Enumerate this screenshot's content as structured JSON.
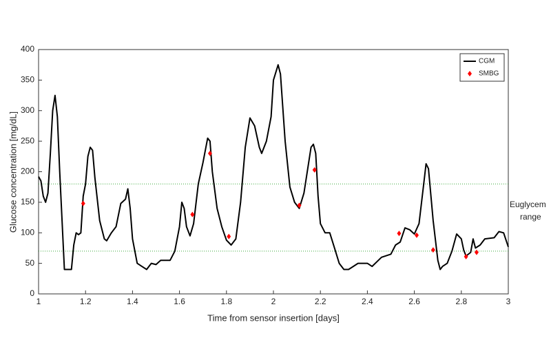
{
  "chart_data": {
    "type": "line",
    "xlabel": "Time from sensor insertion [days]",
    "ylabel": "Glucose concentration [mg/dL]",
    "xlim": [
      1,
      3
    ],
    "xticks": [
      1,
      1.2,
      1.4,
      1.6,
      1.8,
      2,
      2.2,
      2.4,
      2.6,
      2.8,
      3
    ],
    "ylim": [
      0,
      400
    ],
    "yticks": [
      0,
      50,
      100,
      150,
      200,
      250,
      300,
      350,
      400
    ],
    "grid": false,
    "legend": "upper right",
    "hlines": [
      70,
      180
    ],
    "hline_color": "#3aa83a",
    "annotation": [
      "Euglycem",
      "range"
    ],
    "series": [
      {
        "name": "CGM",
        "color": "#000000",
        "style": "line",
        "x": [
          1.0,
          1.01,
          1.02,
          1.03,
          1.04,
          1.05,
          1.06,
          1.07,
          1.08,
          1.09,
          1.1,
          1.11,
          1.12,
          1.14,
          1.15,
          1.16,
          1.17,
          1.18,
          1.19,
          1.2,
          1.21,
          1.22,
          1.23,
          1.24,
          1.26,
          1.28,
          1.29,
          1.31,
          1.33,
          1.35,
          1.37,
          1.38,
          1.39,
          1.4,
          1.42,
          1.44,
          1.46,
          1.48,
          1.5,
          1.52,
          1.56,
          1.58,
          1.6,
          1.61,
          1.62,
          1.63,
          1.645,
          1.66,
          1.68,
          1.7,
          1.72,
          1.73,
          1.74,
          1.76,
          1.78,
          1.8,
          1.82,
          1.84,
          1.86,
          1.88,
          1.9,
          1.92,
          1.94,
          1.95,
          1.97,
          1.99,
          2.0,
          2.02,
          2.03,
          2.05,
          2.07,
          2.09,
          2.11,
          2.13,
          2.16,
          2.17,
          2.18,
          2.19,
          2.2,
          2.22,
          2.24,
          2.26,
          2.28,
          2.3,
          2.32,
          2.34,
          2.36,
          2.4,
          2.42,
          2.46,
          2.5,
          2.52,
          2.54,
          2.56,
          2.58,
          2.6,
          2.62,
          2.64,
          2.65,
          2.66,
          2.68,
          2.7,
          2.71,
          2.72,
          2.74,
          2.76,
          2.78,
          2.8,
          2.81,
          2.82,
          2.84,
          2.85,
          2.86,
          2.88,
          2.9,
          2.94,
          2.96,
          2.98,
          3.0
        ],
        "values": [
          192,
          185,
          160,
          150,
          165,
          230,
          300,
          325,
          290,
          200,
          120,
          40,
          40,
          40,
          80,
          100,
          97,
          100,
          160,
          180,
          225,
          240,
          235,
          190,
          120,
          90,
          87,
          100,
          110,
          148,
          155,
          172,
          140,
          90,
          50,
          45,
          40,
          50,
          48,
          55,
          55,
          70,
          110,
          150,
          140,
          110,
          95,
          115,
          180,
          215,
          255,
          250,
          200,
          140,
          110,
          88,
          80,
          90,
          150,
          240,
          288,
          275,
          240,
          230,
          250,
          290,
          350,
          375,
          360,
          250,
          175,
          150,
          140,
          165,
          240,
          245,
          230,
          160,
          115,
          100,
          100,
          75,
          50,
          40,
          40,
          45,
          50,
          50,
          45,
          60,
          65,
          80,
          85,
          108,
          105,
          98,
          115,
          180,
          213,
          205,
          120,
          55,
          40,
          45,
          50,
          70,
          98,
          90,
          72,
          62,
          68,
          90,
          75,
          80,
          90,
          92,
          102,
          100,
          77
        ]
      },
      {
        "name": "SMBG",
        "color": "#ff0000",
        "style": "diamond",
        "x": [
          1.19,
          1.655,
          1.73,
          1.81,
          2.11,
          2.175,
          2.535,
          2.61,
          2.68,
          2.82,
          2.865
        ],
        "values": [
          148,
          130,
          230,
          94,
          145,
          203,
          99,
          96,
          72,
          61,
          68
        ]
      }
    ]
  }
}
